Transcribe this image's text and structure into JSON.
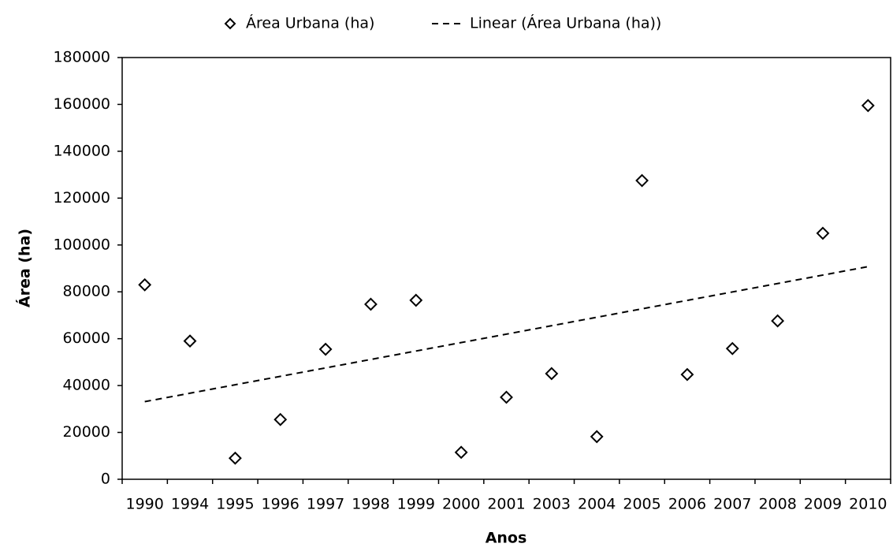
{
  "chart_data": {
    "type": "scatter-category",
    "x_label": "Anos",
    "y_label": "Área (ha)",
    "categories": [
      "1990",
      "1994",
      "1995",
      "1996",
      "1997",
      "1998",
      "1999",
      "2000",
      "2001",
      "2003",
      "2004",
      "2005",
      "2006",
      "2007",
      "2008",
      "2009",
      "2010"
    ],
    "series": [
      {
        "name": "Área Urbana (ha)",
        "color": "#000000",
        "marker": "diamond",
        "values": [
          83000,
          59000,
          9000,
          25500,
          55500,
          74700,
          76400,
          11500,
          35000,
          45100,
          18200,
          127500,
          44700,
          55800,
          67600,
          105000,
          159500
        ]
      }
    ],
    "trendline": {
      "name": "Linear (Área Urbana (ha))",
      "type": "linear",
      "color": "#000000"
    },
    "ylim": [
      0,
      180000
    ],
    "yticks": [
      0,
      20000,
      40000,
      60000,
      80000,
      100000,
      120000,
      140000,
      160000,
      180000
    ],
    "grid": false,
    "legend": "top"
  }
}
